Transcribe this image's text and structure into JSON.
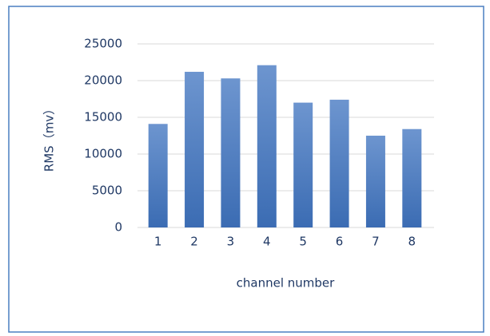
{
  "chart_data": {
    "type": "bar",
    "categories": [
      "1",
      "2",
      "3",
      "4",
      "5",
      "6",
      "7",
      "8"
    ],
    "values": [
      14100,
      21200,
      20300,
      22100,
      17000,
      17400,
      12500,
      13400
    ],
    "color": "#4a78be",
    "xlabel": "channel number",
    "ylabel": "RMS（mv）",
    "ylim": [
      0,
      25000
    ],
    "yticks": [
      0,
      5000,
      10000,
      15000,
      20000,
      25000
    ],
    "grid": true
  }
}
